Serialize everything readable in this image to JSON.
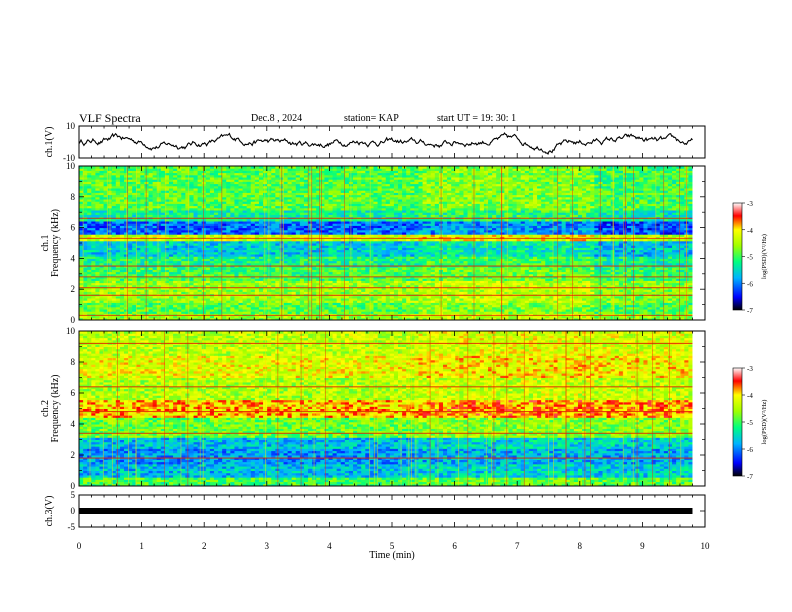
{
  "header": {
    "title": "VLF Spectra",
    "date": "Dec.8 , 2024",
    "station": "station= KAP",
    "start": "start  UT =   19: 30: 1"
  },
  "chart_data": [
    {
      "type": "line",
      "title": "",
      "xlabel": "",
      "ylabel": "ch.1(V)",
      "ylim": [
        -10,
        10
      ],
      "yticks": [
        "10",
        "-10"
      ],
      "xlim": [
        0,
        10
      ],
      "x_span": [
        0,
        9.8
      ],
      "series": [
        {
          "values": "noisy waveform, roughly between -8 and +8 V with a slow drift"
        }
      ]
    },
    {
      "type": "heatmap",
      "ylabel": "ch.1\nFrequency (kHz)",
      "ylabel_lines": [
        "ch.1",
        "Frequency (kHz)"
      ],
      "ylim": [
        0,
        10
      ],
      "yticks": [
        "0",
        "2",
        "4",
        "6",
        "8",
        "10"
      ],
      "xlim": [
        0,
        10
      ],
      "colorbar": {
        "label": "log(PSD)(V²/Hz)",
        "ticks": [
          "-3",
          "-4",
          "-5",
          "-6",
          "-7"
        ],
        "range": [
          -7,
          -3
        ]
      },
      "bands": [
        {
          "from": 0,
          "to": 0.4,
          "level": -4.6
        },
        {
          "from": 0.4,
          "to": 1.2,
          "level": -4.9
        },
        {
          "from": 1.2,
          "to": 2.6,
          "level": -4.6
        },
        {
          "from": 2.6,
          "to": 3.4,
          "level": -5.0
        },
        {
          "from": 3.4,
          "to": 4.2,
          "level": -5.2
        },
        {
          "from": 4.2,
          "to": 5.2,
          "level": -5.6
        },
        {
          "from": 5.2,
          "to": 5.6,
          "level": -4.3
        },
        {
          "from": 5.6,
          "to": 6.4,
          "level": -6.1
        },
        {
          "from": 6.4,
          "to": 7.2,
          "level": -5.3
        },
        {
          "from": 7.2,
          "to": 10,
          "level": -4.9
        }
      ],
      "lines_khz": [
        0.3,
        1.6,
        2.1,
        2.8,
        3.5,
        5.3,
        6.6
      ]
    },
    {
      "type": "heatmap",
      "ylabel": "ch.2\nFrequency (kHz)",
      "ylabel_lines": [
        "ch.2",
        "Frequency (kHz)"
      ],
      "ylim": [
        0,
        10
      ],
      "yticks": [
        "0",
        "2",
        "4",
        "6",
        "8",
        "10"
      ],
      "xlim": [
        0,
        10
      ],
      "colorbar": {
        "label": "log(PSD)(V²/Hz)",
        "ticks": [
          "-3",
          "-4",
          "-5",
          "-6",
          "-7"
        ],
        "range": [
          -7,
          -3
        ]
      },
      "bands": [
        {
          "from": 0,
          "to": 0.6,
          "level": -5.0
        },
        {
          "from": 0.6,
          "to": 1.4,
          "level": -5.7
        },
        {
          "from": 1.4,
          "to": 2.4,
          "level": -5.9
        },
        {
          "from": 2.4,
          "to": 3.2,
          "level": -5.7
        },
        {
          "from": 3.2,
          "to": 4.4,
          "level": -4.8
        },
        {
          "from": 4.4,
          "to": 5.6,
          "level": -3.9
        },
        {
          "from": 5.6,
          "to": 7.0,
          "level": -4.5
        },
        {
          "from": 7.0,
          "to": 8.5,
          "level": -4.2
        },
        {
          "from": 8.5,
          "to": 10,
          "level": -4.4
        }
      ],
      "lines_khz": [
        1.8,
        3.4,
        4.8,
        6.4,
        9.2
      ]
    },
    {
      "type": "line",
      "ylabel": "ch.3(V)",
      "ylim": [
        -5,
        5
      ],
      "yticks": [
        "5",
        "0",
        "-5"
      ],
      "xlim": [
        0,
        10
      ],
      "xticks": [
        "0",
        "1",
        "2",
        "3",
        "4",
        "5",
        "6",
        "7",
        "8",
        "9",
        "10"
      ],
      "xlabel": "Time (min)",
      "series": [
        {
          "constant": 0,
          "x_span": [
            0,
            9.8
          ]
        }
      ]
    }
  ]
}
